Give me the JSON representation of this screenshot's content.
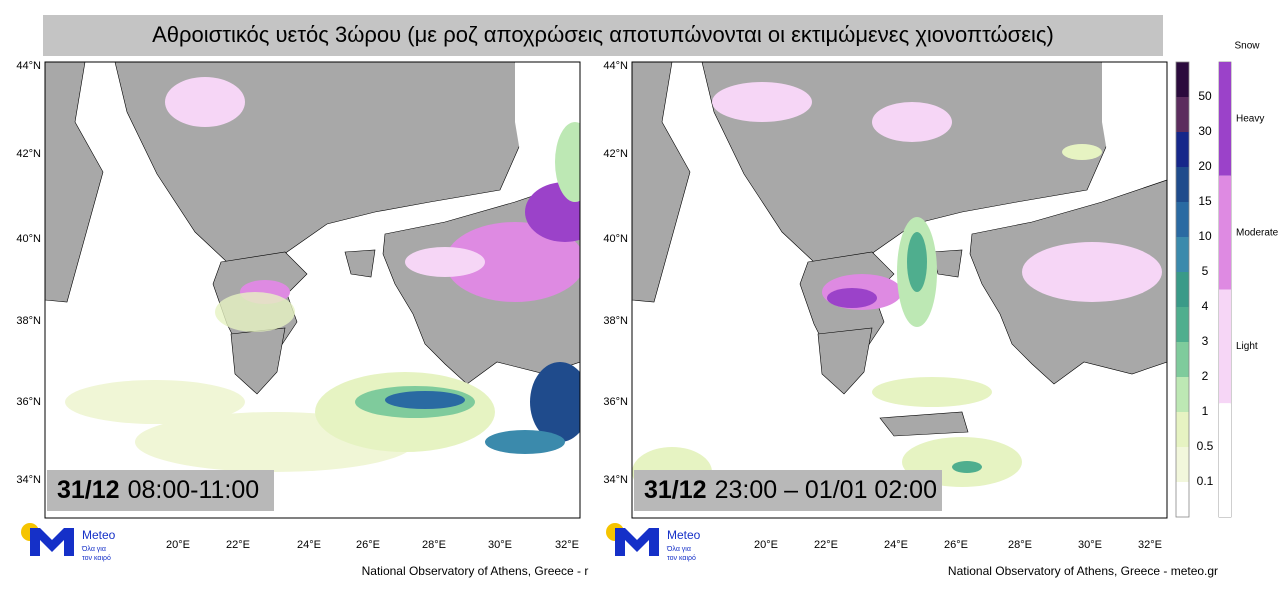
{
  "header": {
    "title": "Αθροιστικός υετός 3ώρου (με ροζ αποχρώσεις αποτυπώνονται οι εκτιμώμενες χιονοπτώσεις)"
  },
  "panels": [
    {
      "date": "31/12",
      "time": "08:00-11:00",
      "lat_labels": [
        "44°N",
        "42°N",
        "40°N",
        "38°N",
        "36°N",
        "34°N"
      ],
      "lon_labels": [
        "20°E",
        "22°E",
        "24°E",
        "26°E",
        "28°E",
        "30°E",
        "32°E"
      ],
      "footer": "National Observatory of Athens, Greece - r"
    },
    {
      "date": "31/12",
      "time": "23:00 – 01/01 02:00",
      "lat_labels": [
        "44°N",
        "42°N",
        "40°N",
        "38°N",
        "36°N",
        "34°N"
      ],
      "lon_labels": [
        "20°E",
        "22°E",
        "24°E",
        "26°E",
        "28°E",
        "30°E",
        "32°E"
      ],
      "footer": "National Observatory of Athens, Greece - meteo.gr"
    }
  ],
  "logo": {
    "name": "Meteo",
    "tagline": [
      "Όλα για",
      "τον καιρό"
    ]
  },
  "colorbar": {
    "labels": [
      "50",
      "30",
      "20",
      "15",
      "10",
      "5",
      "4",
      "3",
      "2",
      "1",
      "0.5",
      "0.1"
    ],
    "colors": [
      "#2b0b3d",
      "#5c2d5e",
      "#16278a",
      "#1f4b8c",
      "#2a6aa2",
      "#3b8aac",
      "#3a9a88",
      "#4fae8e",
      "#7fcb9c",
      "#bde8b4",
      "#e6f3c2",
      "#f2f7dc",
      "#ffffff"
    ]
  },
  "snow": {
    "title": "Snow",
    "levels": [
      "Heavy",
      "Moderate",
      "Light"
    ],
    "colors": [
      "#9b42c9",
      "#de8ae2",
      "#f6d6f6",
      "#ffffff"
    ]
  }
}
